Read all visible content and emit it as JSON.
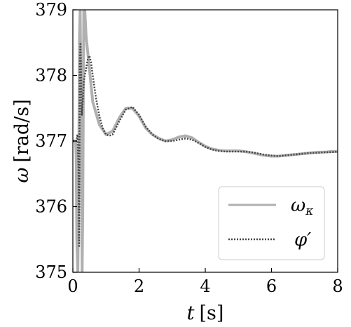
{
  "chart_data": {
    "type": "line",
    "xlabel": "t [s]",
    "xlabel_var": "t",
    "xlabel_unit": "[s]",
    "ylabel": "ω [rad/s]",
    "ylabel_var": "ω",
    "ylabel_unit": "[rad/s]",
    "xlim": [
      0,
      8
    ],
    "ylim": [
      375,
      379
    ],
    "xticks": [
      0,
      2,
      4,
      6,
      8
    ],
    "xtick_labels": [
      "0",
      "2",
      "4",
      "6",
      "8"
    ],
    "yticks": [
      375,
      376,
      377,
      378,
      379
    ],
    "ytick_labels": [
      "375",
      "376",
      "377",
      "378",
      "379"
    ],
    "grid": false,
    "legend_position": "lower-right",
    "series": [
      {
        "name": "ωκ",
        "name_main": "ω",
        "name_sub": "κ",
        "style": "solid",
        "color": "#b0b0b0",
        "x": [
          0.0,
          0.05,
          0.08,
          0.1,
          0.12,
          0.15,
          0.18,
          0.2,
          0.22,
          0.25,
          0.28,
          0.3,
          0.33,
          0.36,
          0.4,
          0.5,
          0.6,
          0.8,
          1.0,
          1.2,
          1.4,
          1.6,
          1.8,
          2.0,
          2.2,
          2.4,
          2.6,
          2.8,
          3.0,
          3.2,
          3.4,
          3.6,
          3.8,
          4.0,
          4.2,
          4.4,
          4.6,
          4.8,
          5.0,
          5.2,
          5.4,
          5.6,
          5.8,
          6.0,
          6.2,
          6.4,
          6.6,
          6.8,
          7.0,
          7.2,
          7.4,
          7.6,
          7.8,
          8.0
        ],
        "values": [
          377.0,
          377.0,
          377.0,
          376.8,
          375.5,
          375.0,
          376.6,
          378.6,
          379.0,
          377.5,
          375.0,
          376.0,
          379.0,
          379.0,
          378.6,
          378.1,
          377.6,
          377.25,
          377.1,
          377.15,
          377.35,
          377.5,
          377.5,
          377.38,
          377.2,
          377.1,
          377.04,
          377.0,
          377.02,
          377.06,
          377.08,
          377.05,
          376.98,
          376.92,
          376.88,
          376.86,
          376.85,
          376.85,
          376.85,
          376.84,
          376.82,
          376.8,
          376.78,
          376.77,
          376.77,
          376.78,
          376.79,
          376.8,
          376.81,
          376.82,
          376.83,
          376.83,
          376.84,
          376.84
        ]
      },
      {
        "name": "φ′",
        "style": "dotted",
        "color": "#444444",
        "x": [
          0.0,
          0.1,
          0.14,
          0.17,
          0.19,
          0.21,
          0.23,
          0.25,
          0.27,
          0.3,
          0.33,
          0.36,
          0.4,
          0.45,
          0.5,
          0.55,
          0.6,
          0.7,
          0.8,
          0.9,
          1.0,
          1.1,
          1.2,
          1.4,
          1.6,
          1.8,
          2.0,
          2.2,
          2.4,
          2.6,
          2.8,
          3.0,
          3.2,
          3.4,
          3.6,
          3.8,
          4.0,
          4.2,
          4.4,
          4.6,
          4.8,
          5.0,
          5.2,
          5.4,
          5.6,
          5.8,
          6.0,
          6.2,
          6.4,
          6.6,
          6.8,
          7.0,
          7.2,
          7.4,
          7.6,
          7.8,
          8.0
        ],
        "values": [
          377.0,
          377.0,
          377.1,
          376.6,
          375.4,
          378.2,
          378.5,
          378.0,
          377.4,
          377.6,
          377.9,
          378.0,
          378.1,
          378.25,
          378.3,
          378.2,
          378.0,
          377.65,
          377.38,
          377.2,
          377.1,
          377.08,
          377.1,
          377.3,
          377.48,
          377.52,
          377.4,
          377.22,
          377.1,
          377.03,
          377.0,
          377.0,
          377.02,
          377.04,
          377.02,
          376.97,
          376.91,
          376.87,
          376.85,
          376.84,
          376.84,
          376.84,
          376.84,
          376.83,
          376.81,
          376.79,
          376.78,
          376.77,
          376.78,
          376.79,
          376.8,
          376.81,
          376.82,
          376.82,
          376.83,
          376.83,
          376.84
        ]
      }
    ]
  }
}
